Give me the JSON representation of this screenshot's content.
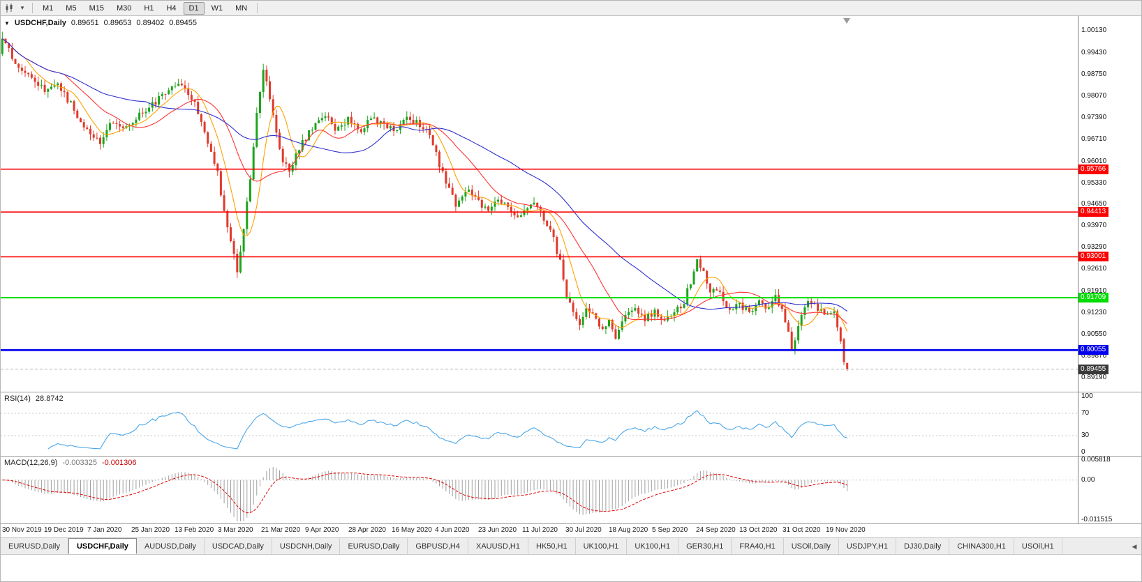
{
  "icons": {
    "symbol_dropdown": "▼",
    "timeframe_caret": "▾",
    "tab_scroll_left": "◀"
  },
  "toolbar": {
    "timeframes": [
      {
        "label": "M1",
        "active": false
      },
      {
        "label": "M5",
        "active": false
      },
      {
        "label": "M15",
        "active": false
      },
      {
        "label": "M30",
        "active": false
      },
      {
        "label": "H1",
        "active": false
      },
      {
        "label": "H4",
        "active": false
      },
      {
        "label": "D1",
        "active": true
      },
      {
        "label": "W1",
        "active": false
      },
      {
        "label": "MN",
        "active": false
      }
    ]
  },
  "chart_data": {
    "type": "candlestick",
    "symbol": "USDCHF,Daily",
    "open": "0.89651",
    "high": "0.89653",
    "low": "0.89402",
    "close": "0.89455",
    "price_range": {
      "top": 1.006,
      "bottom": 0.8872
    },
    "plot_span": 1215,
    "n_candles": 260,
    "y_ticks": [
      "1.00130",
      "0.99430",
      "0.98750",
      "0.98070",
      "0.97390",
      "0.96710",
      "0.96010",
      "0.95330",
      "0.94650",
      "0.93970",
      "0.93290",
      "0.92610",
      "0.91910",
      "0.91230",
      "0.90550",
      "0.89870",
      "0.89190"
    ],
    "hlines": [
      {
        "price": 0.95766,
        "label": "0.95766",
        "color": "#ff0000",
        "width": 1.6
      },
      {
        "price": 0.94413,
        "label": "0.94413",
        "color": "#ff0000",
        "width": 1.6
      },
      {
        "price": 0.93001,
        "label": "0.93001",
        "color": "#ff0000",
        "width": 1.6
      },
      {
        "price": 0.91709,
        "label": "0.91709",
        "color": "#00dd00",
        "width": 2
      },
      {
        "price": 0.90055,
        "label": "0.90055",
        "color": "#0000ee",
        "width": 2.6
      }
    ],
    "current_price": {
      "value": 0.89455,
      "label": "0.89455"
    },
    "ma": [
      {
        "period": 8,
        "color": "#ffa000"
      },
      {
        "period": 20,
        "color": "#ff3333"
      },
      {
        "period": 45,
        "color": "#3030d0"
      }
    ],
    "colors": {
      "up": "#1ca41c",
      "down": "#e03a2c"
    },
    "close_keyframes": [
      [
        0,
        0.999
      ],
      [
        2,
        0.9952
      ],
      [
        4,
        0.9918
      ],
      [
        6,
        0.9892
      ],
      [
        9,
        0.9868
      ],
      [
        13,
        0.9822
      ],
      [
        16,
        0.985
      ],
      [
        20,
        0.9798
      ],
      [
        24,
        0.9728
      ],
      [
        27,
        0.969
      ],
      [
        30,
        0.9665
      ],
      [
        33,
        0.9718
      ],
      [
        36,
        0.9705
      ],
      [
        40,
        0.973
      ],
      [
        44,
        0.9762
      ],
      [
        48,
        0.98
      ],
      [
        53,
        0.9838
      ],
      [
        56,
        0.9842
      ],
      [
        59,
        0.978
      ],
      [
        62,
        0.969
      ],
      [
        66,
        0.956
      ],
      [
        68,
        0.945
      ],
      [
        70,
        0.9345
      ],
      [
        72,
        0.9262
      ],
      [
        74,
        0.939
      ],
      [
        76,
        0.9545
      ],
      [
        78,
        0.9748
      ],
      [
        80,
        0.9895
      ],
      [
        82,
        0.98
      ],
      [
        84,
        0.9685
      ],
      [
        86,
        0.9605
      ],
      [
        88,
        0.9562
      ],
      [
        90,
        0.9628
      ],
      [
        93,
        0.9678
      ],
      [
        96,
        0.9722
      ],
      [
        99,
        0.9752
      ],
      [
        102,
        0.9692
      ],
      [
        106,
        0.9732
      ],
      [
        110,
        0.97
      ],
      [
        113,
        0.9742
      ],
      [
        116,
        0.9718
      ],
      [
        120,
        0.9698
      ],
      [
        124,
        0.9738
      ],
      [
        128,
        0.9718
      ],
      [
        131,
        0.9678
      ],
      [
        133,
        0.9622
      ],
      [
        136,
        0.9532
      ],
      [
        139,
        0.9462
      ],
      [
        142,
        0.9512
      ],
      [
        146,
        0.9472
      ],
      [
        149,
        0.944
      ],
      [
        152,
        0.9482
      ],
      [
        155,
        0.9458
      ],
      [
        158,
        0.9422
      ],
      [
        160,
        0.9452
      ],
      [
        163,
        0.9468
      ],
      [
        166,
        0.942
      ],
      [
        169,
        0.9352
      ],
      [
        171,
        0.9282
      ],
      [
        173,
        0.9182
      ],
      [
        175,
        0.9122
      ],
      [
        177,
        0.9092
      ],
      [
        179,
        0.9148
      ],
      [
        182,
        0.9102
      ],
      [
        184,
        0.9062
      ],
      [
        186,
        0.9092
      ],
      [
        188,
        0.9052
      ],
      [
        191,
        0.9108
      ],
      [
        194,
        0.9142
      ],
      [
        197,
        0.9102
      ],
      [
        200,
        0.9132
      ],
      [
        203,
        0.9092
      ],
      [
        206,
        0.9122
      ],
      [
        209,
        0.9162
      ],
      [
        211,
        0.9222
      ],
      [
        213,
        0.9288
      ],
      [
        215,
        0.9252
      ],
      [
        217,
        0.9182
      ],
      [
        219,
        0.9202
      ],
      [
        221,
        0.9162
      ],
      [
        223,
        0.9132
      ],
      [
        226,
        0.9152
      ],
      [
        229,
        0.9122
      ],
      [
        232,
        0.9162
      ],
      [
        235,
        0.9132
      ],
      [
        237,
        0.9172
      ],
      [
        239,
        0.9142
      ],
      [
        241,
        0.9062
      ],
      [
        242,
        0.8998
      ],
      [
        244,
        0.9092
      ],
      [
        246,
        0.9142
      ],
      [
        248,
        0.9162
      ],
      [
        250,
        0.9132
      ],
      [
        253,
        0.9112
      ],
      [
        255,
        0.9122
      ],
      [
        257,
        0.9042
      ],
      [
        258,
        0.8968
      ],
      [
        259,
        0.8946
      ]
    ],
    "prev_candle": {
      "open": 0.904,
      "high": 0.9044,
      "low": 0.8958,
      "close": 0.8968
    },
    "last_candle": {
      "open": 0.89651,
      "high": 0.89653,
      "low": 0.89402,
      "close": 0.89455
    },
    "x_labels": [
      "30 Nov 2019",
      "19 Dec 2019",
      "7 Jan 2020",
      "25 Jan 2020",
      "13 Feb 2020",
      "3 Mar 2020",
      "21 Mar 2020",
      "9 Apr 2020",
      "28 Apr 2020",
      "16 May 2020",
      "4 Jun 2020",
      "23 Jun 2020",
      "11 Jul 2020",
      "30 Jul 2020",
      "18 Aug 2020",
      "5 Sep 2020",
      "24 Sep 2020",
      "13 Oct 2020",
      "31 Oct 2020",
      "19 Nov 2020"
    ]
  },
  "rsi": {
    "label": "RSI(14)",
    "value": "28.8742",
    "period": 14,
    "levels": [
      "100",
      "70",
      "30",
      "0"
    ],
    "color": "#4aa6e8"
  },
  "macd": {
    "label": "MACD(12,26,9)",
    "value_main": "-0.003325",
    "value_signal": "-0.001306",
    "axis": [
      "0.005818",
      "0.00",
      "-0.011515"
    ],
    "range": {
      "max": 0.006,
      "min": -0.012
    },
    "bar_color": "#9e9e9e",
    "signal_color": "#e00000"
  },
  "tabs": {
    "items": [
      {
        "label": "EURUSD,Daily",
        "active": false
      },
      {
        "label": "USDCHF,Daily",
        "active": true
      },
      {
        "label": "AUDUSD,Daily",
        "active": false
      },
      {
        "label": "USDCAD,Daily",
        "active": false
      },
      {
        "label": "USDCNH,Daily",
        "active": false
      },
      {
        "label": "EURUSD,Daily",
        "active": false
      },
      {
        "label": "GBPUSD,H4",
        "active": false
      },
      {
        "label": "XAUUSD,H1",
        "active": false
      },
      {
        "label": "HK50,H1",
        "active": false
      },
      {
        "label": "UK100,H1",
        "active": false
      },
      {
        "label": "UK100,H1",
        "active": false
      },
      {
        "label": "GER30,H1",
        "active": false
      },
      {
        "label": "FRA40,H1",
        "active": false
      },
      {
        "label": "USOil,Daily",
        "active": false
      },
      {
        "label": "USDJPY,H1",
        "active": false
      },
      {
        "label": "DJ30,Daily",
        "active": false
      },
      {
        "label": "CHINA300,H1",
        "active": false
      },
      {
        "label": "USOil,H1",
        "active": false
      }
    ]
  }
}
